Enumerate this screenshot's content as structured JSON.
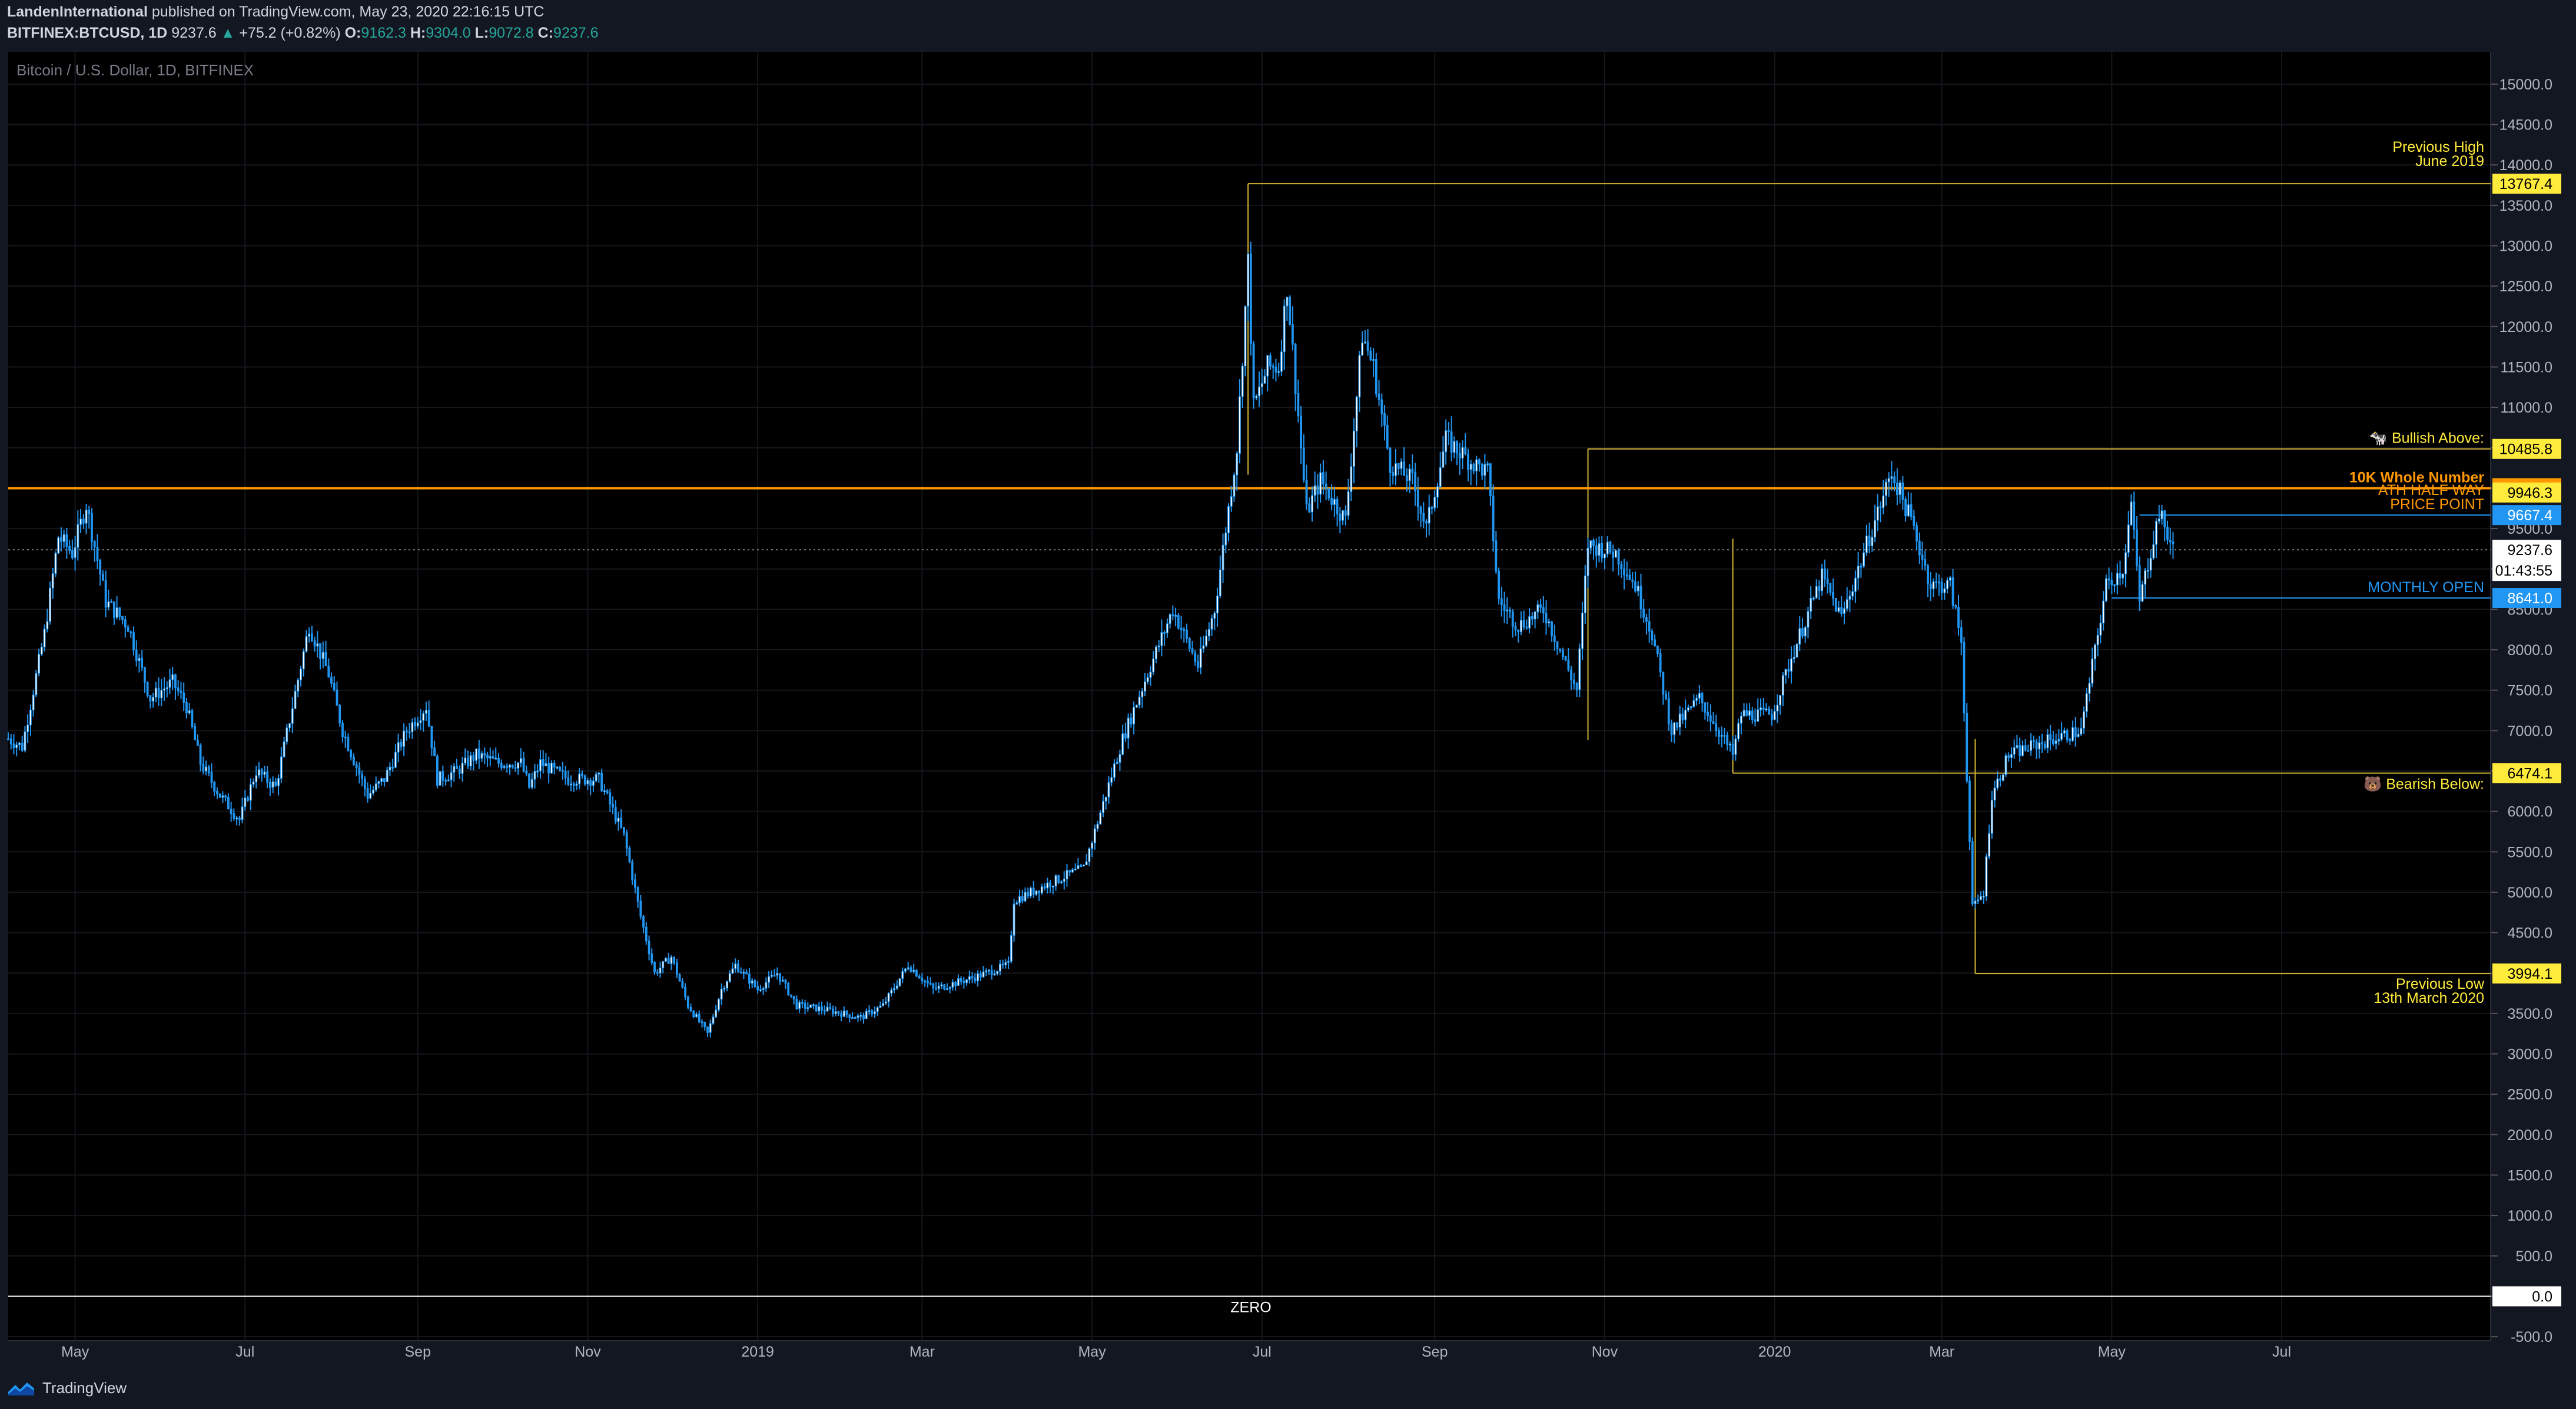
{
  "header": {
    "author": "LandenInternational",
    "published_text": "published on TradingView.com, May 23, 2020 22:16:15 UTC",
    "symbol": "BITFINEX:BTCUSD, 1D",
    "last": "9237.6",
    "change_arrow": "▲",
    "change": "+75.2 (+0.82%)",
    "o_label": "O:",
    "o_value": "9162.3",
    "h_label": "H:",
    "h_value": "9304.0",
    "l_label": "L:",
    "l_value": "9072.8",
    "c_label": "C:",
    "c_value": "9237.6"
  },
  "footer": {
    "brand": "TradingView"
  },
  "colors": {
    "background": "#131722",
    "pane": "#000000",
    "candle": "#ffffff",
    "candle_outline": "#2196f3",
    "gold": "#d4b536",
    "orange": "#ff9800",
    "blue": "#2196f3",
    "yellow_label": "#ffeb3b"
  },
  "chart_data": {
    "type": "candlestick",
    "title": "Bitcoin / U.S. Dollar, 1D, BITFINEX",
    "y_ticks": [
      "15000.0",
      "14500.0",
      "14000.0",
      "13500.0",
      "13000.0",
      "12500.0",
      "12000.0",
      "11500.0",
      "11000.0",
      "10500.0",
      "10000.0",
      "9500.0",
      "9000.0",
      "8500.0",
      "8000.0",
      "7500.0",
      "7000.0",
      "6500.0",
      "6000.0",
      "5500.0",
      "5000.0",
      "4500.0",
      "4000.0",
      "3500.0",
      "3000.0",
      "2500.0",
      "2000.0",
      "1500.0",
      "1000.0",
      "500.0",
      "0.0",
      "-500.0"
    ],
    "ylim": [
      -550,
      15400
    ],
    "x_ticks": [
      {
        "label": "May",
        "date": "2018-05-01"
      },
      {
        "label": "Jul",
        "date": "2018-07-01"
      },
      {
        "label": "Sep",
        "date": "2018-09-01"
      },
      {
        "label": "Nov",
        "date": "2018-11-01"
      },
      {
        "label": "2019",
        "date": "2019-01-01"
      },
      {
        "label": "Mar",
        "date": "2019-03-01"
      },
      {
        "label": "May",
        "date": "2019-05-01"
      },
      {
        "label": "Jul",
        "date": "2019-07-01"
      },
      {
        "label": "Sep",
        "date": "2019-09-01"
      },
      {
        "label": "Nov",
        "date": "2019-11-01"
      },
      {
        "label": "2020",
        "date": "2020-01-01"
      },
      {
        "label": "Mar",
        "date": "2020-03-01"
      },
      {
        "label": "May",
        "date": "2020-05-01"
      },
      {
        "label": "Jul",
        "date": "2020-07-01"
      }
    ],
    "xlim": [
      "2018-04-07",
      "2020-09-14"
    ],
    "price_path": [
      [
        "2018-04-07",
        6900
      ],
      [
        "2018-04-12",
        6800
      ],
      [
        "2018-04-20",
        8200
      ],
      [
        "2018-04-25",
        9400
      ],
      [
        "2018-04-30",
        9200
      ],
      [
        "2018-05-05",
        9800
      ],
      [
        "2018-05-12",
        8600
      ],
      [
        "2018-05-20",
        8300
      ],
      [
        "2018-05-28",
        7400
      ],
      [
        "2018-06-05",
        7600
      ],
      [
        "2018-06-10",
        7300
      ],
      [
        "2018-06-15",
        6600
      ],
      [
        "2018-06-22",
        6200
      ],
      [
        "2018-06-29",
        5900
      ],
      [
        "2018-07-05",
        6500
      ],
      [
        "2018-07-12",
        6300
      ],
      [
        "2018-07-18",
        7300
      ],
      [
        "2018-07-24",
        8300
      ],
      [
        "2018-07-31",
        7700
      ],
      [
        "2018-08-05",
        7000
      ],
      [
        "2018-08-14",
        6200
      ],
      [
        "2018-08-20",
        6400
      ],
      [
        "2018-08-28",
        7000
      ],
      [
        "2018-09-04",
        7300
      ],
      [
        "2018-09-08",
        6400
      ],
      [
        "2018-09-15",
        6500
      ],
      [
        "2018-09-22",
        6700
      ],
      [
        "2018-09-30",
        6600
      ],
      [
        "2018-10-08",
        6600
      ],
      [
        "2018-10-11",
        6300
      ],
      [
        "2018-10-15",
        6600
      ],
      [
        "2018-10-25",
        6400
      ],
      [
        "2018-11-05",
        6400
      ],
      [
        "2018-11-14",
        5700
      ],
      [
        "2018-11-20",
        4700
      ],
      [
        "2018-11-25",
        4000
      ],
      [
        "2018-12-01",
        4200
      ],
      [
        "2018-12-07",
        3600
      ],
      [
        "2018-12-14",
        3250
      ],
      [
        "2018-12-19",
        3800
      ],
      [
        "2018-12-24",
        4100
      ],
      [
        "2019-01-01",
        3800
      ],
      [
        "2019-01-08",
        4000
      ],
      [
        "2019-01-15",
        3600
      ],
      [
        "2019-01-25",
        3550
      ],
      [
        "2019-02-07",
        3450
      ],
      [
        "2019-02-15",
        3600
      ],
      [
        "2019-02-24",
        4100
      ],
      [
        "2019-03-05",
        3800
      ],
      [
        "2019-03-20",
        3950
      ],
      [
        "2019-04-01",
        4100
      ],
      [
        "2019-04-03",
        4900
      ],
      [
        "2019-04-15",
        5100
      ],
      [
        "2019-04-28",
        5300
      ],
      [
        "2019-05-12",
        6900
      ],
      [
        "2019-05-22",
        7800
      ],
      [
        "2019-05-30",
        8500
      ],
      [
        "2019-06-08",
        7800
      ],
      [
        "2019-06-14",
        8500
      ],
      [
        "2019-06-22",
        10500
      ],
      [
        "2019-06-26",
        12800
      ],
      [
        "2019-06-28",
        11000
      ],
      [
        "2019-07-03",
        11500
      ],
      [
        "2019-07-07",
        11500
      ],
      [
        "2019-07-10",
        12500
      ],
      [
        "2019-07-17",
        9700
      ],
      [
        "2019-07-22",
        10100
      ],
      [
        "2019-07-31",
        9600
      ],
      [
        "2019-08-06",
        11900
      ],
      [
        "2019-08-10",
        11500
      ],
      [
        "2019-08-16",
        10300
      ],
      [
        "2019-08-24",
        10100
      ],
      [
        "2019-08-29",
        9500
      ],
      [
        "2019-09-05",
        10600
      ],
      [
        "2019-09-15",
        10300
      ],
      [
        "2019-09-20",
        10200
      ],
      [
        "2019-09-24",
        8600
      ],
      [
        "2019-10-01",
        8300
      ],
      [
        "2019-10-10",
        8500
      ],
      [
        "2019-10-22",
        7500
      ],
      [
        "2019-10-26",
        9300
      ],
      [
        "2019-11-05",
        9200
      ],
      [
        "2019-11-12",
        8800
      ],
      [
        "2019-11-18",
        8200
      ],
      [
        "2019-11-25",
        7000
      ],
      [
        "2019-12-05",
        7400
      ],
      [
        "2019-12-17",
        6700
      ],
      [
        "2019-12-20",
        7200
      ],
      [
        "2019-12-31",
        7200
      ],
      [
        "2020-01-08",
        8000
      ],
      [
        "2020-01-18",
        8900
      ],
      [
        "2020-01-25",
        8400
      ],
      [
        "2020-02-03",
        9300
      ],
      [
        "2020-02-12",
        10200
      ],
      [
        "2020-02-19",
        9600
      ],
      [
        "2020-02-26",
        8800
      ],
      [
        "2020-03-04",
        8800
      ],
      [
        "2020-03-08",
        8100
      ],
      [
        "2020-03-12",
        4800
      ],
      [
        "2020-03-16",
        5000
      ],
      [
        "2020-03-19",
        6200
      ],
      [
        "2020-03-25",
        6700
      ],
      [
        "2020-04-02",
        6800
      ],
      [
        "2020-04-10",
        6900
      ],
      [
        "2020-04-20",
        7000
      ],
      [
        "2020-04-29",
        8800
      ],
      [
        "2020-05-05",
        9000
      ],
      [
        "2020-05-08",
        9800
      ],
      [
        "2020-05-11",
        8600
      ],
      [
        "2020-05-18",
        9700
      ],
      [
        "2020-05-23",
        9237
      ]
    ],
    "lines": [
      {
        "label_lines": [
          "Previous High",
          "June 2019"
        ],
        "price_label": "13767.4",
        "value": 13767.4,
        "from": "2019-06-26",
        "color": "#d4b536",
        "price_bg": "#ffeb3b"
      },
      {
        "label_lines": [
          "🐄 Bullish Above:"
        ],
        "price_label": "10485.8",
        "value": 10485.8,
        "from": "2019-10-26",
        "color": "#d4b536",
        "price_bg": "#ffeb3b"
      },
      {
        "label_lines": [
          "10K Whole Number"
        ],
        "price_label": "10000.0",
        "value": 10000,
        "from": "2018-04-07",
        "color": "#ff9800",
        "price_bg": "#ff9800"
      },
      {
        "label_lines": [
          "🐻 Bearish Below:"
        ],
        "price_label": "6474.1",
        "value": 6474.1,
        "from": "2019-12-17",
        "color": "#d4b536",
        "price_bg": "#ffeb3b"
      },
      {
        "label_lines": [
          "Previous Low",
          "13th March 2020"
        ],
        "price_label": "3994.1",
        "value": 3994.1,
        "from": "2020-03-13",
        "color": "#d4b536",
        "price_bg": "#ffeb3b"
      },
      {
        "label_lines": [
          "MONTHLY OPEN"
        ],
        "price_label": "8641.0",
        "value": 8641.0,
        "from": "2020-05-01",
        "color": "#2196f3",
        "price_bg": "#2196f3"
      },
      {
        "label_lines": [
          "ZERO"
        ],
        "price_label": "0.0",
        "value": 0,
        "from": "2018-04-07",
        "color": "#ffffff",
        "price_bg": "#ffffff"
      }
    ],
    "overlay_labels": [
      {
        "lines": [
          "ATH HALF WAY",
          "PRICE POINT"
        ],
        "price_label": "9946.3",
        "value": 9946.3,
        "color": "#ff9800",
        "price_bg": "#ffeb3b"
      },
      {
        "lines": [],
        "price_label": "9667.4",
        "value": 9667.4,
        "color": "#2196f3",
        "price_bg": "#2196f3"
      }
    ],
    "last_price": {
      "value": 9237.6,
      "label": "9237.6",
      "countdown": "01:43:55"
    }
  }
}
